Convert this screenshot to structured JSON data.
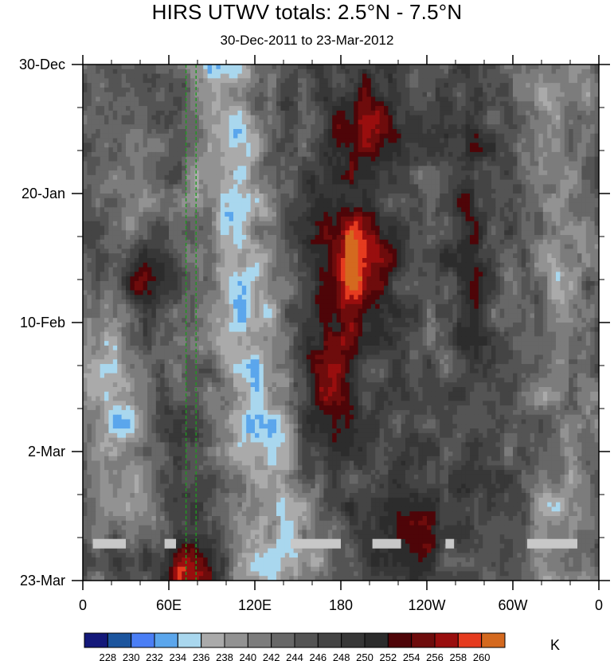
{
  "title": "HIRS UTWV totals: 2.5°N - 7.5°N",
  "subtitle": "30-Dec-2011 to 23-Mar-2012",
  "chart_data": {
    "type": "heatmap",
    "x_ticks": [
      {
        "lon": 0,
        "label": "0"
      },
      {
        "lon": 60,
        "label": "60E"
      },
      {
        "lon": 120,
        "label": "120E"
      },
      {
        "lon": 180,
        "label": "180"
      },
      {
        "lon": 240,
        "label": "120W"
      },
      {
        "lon": 300,
        "label": "60W"
      },
      {
        "lon": 360,
        "label": "0"
      }
    ],
    "y_ticks": [
      {
        "day": 0,
        "label": "30-Dec"
      },
      {
        "day": 21,
        "label": "20-Jan"
      },
      {
        "day": 42,
        "label": "10-Feb"
      },
      {
        "day": 63,
        "label": "2-Mar"
      },
      {
        "day": 84,
        "label": "23-Mar"
      }
    ],
    "xlim": [
      0,
      360
    ],
    "ylim_days": [
      0,
      84
    ],
    "reference_longitudes": [
      72,
      79
    ],
    "colorbar": {
      "unit": "K",
      "levels": [
        "228",
        "230",
        "232",
        "234",
        "236",
        "238",
        "240",
        "242",
        "244",
        "246",
        "248",
        "250",
        "252",
        "254",
        "256",
        "258",
        "260"
      ],
      "colors": [
        "#14197a",
        "#1c559e",
        "#4a7ef5",
        "#5ba6ec",
        "#a9d7ee",
        "#aaaaaa",
        "#929292",
        "#7c7c7c",
        "#676767",
        "#545454",
        "#444444",
        "#373737",
        "#2c2c2c",
        "#4e0508",
        "#6e0c0c",
        "#990e0e",
        "#e53b1f",
        "#d4691f"
      ]
    },
    "missing_data_segments": [
      {
        "day": 78,
        "lon_start": 7,
        "lon_end": 30
      },
      {
        "day": 78,
        "lon_start": 57,
        "lon_end": 65
      },
      {
        "day": 78,
        "lon_start": 145,
        "lon_end": 180
      },
      {
        "day": 78,
        "lon_start": 202,
        "lon_end": 222
      },
      {
        "day": 78,
        "lon_start": 253,
        "lon_end": 259
      },
      {
        "day": 78,
        "lon_start": 310,
        "lon_end": 345
      }
    ],
    "features": [
      {
        "lon": 190,
        "day": 32,
        "level": 260
      },
      {
        "lon": 195,
        "day": 10,
        "level": 258
      },
      {
        "lon": 40,
        "day": 36,
        "level": 258
      },
      {
        "lon": 75,
        "day": 82,
        "level": 258
      },
      {
        "lon": 100,
        "day": 20,
        "level": 232
      },
      {
        "lon": 130,
        "day": 40,
        "level": 230
      },
      {
        "lon": 130,
        "day": 66,
        "level": 232
      }
    ]
  }
}
